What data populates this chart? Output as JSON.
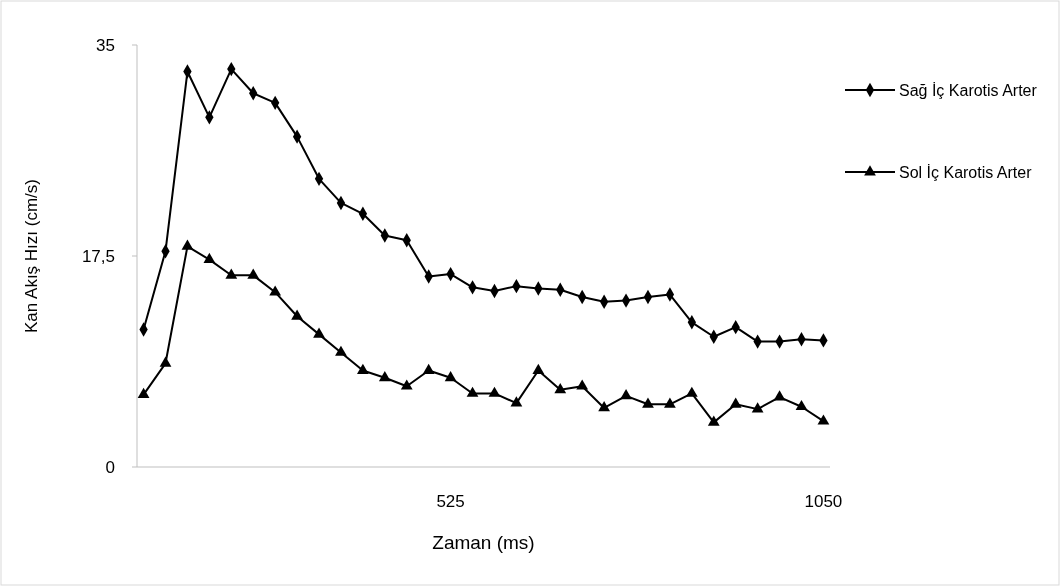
{
  "chart_data": {
    "type": "line",
    "xlabel": "Zaman (ms)",
    "ylabel": "Kan Akış Hızı (cm/s)",
    "categories": [
      null,
      null,
      null,
      null,
      null,
      null,
      null,
      null,
      null,
      null,
      null,
      null,
      null,
      null,
      "525",
      null,
      null,
      null,
      null,
      null,
      null,
      null,
      null,
      null,
      null,
      null,
      null,
      null,
      null,
      null,
      null,
      "1050"
    ],
    "series": [
      {
        "name": "Sağ İç Karotis Arter",
        "color": "#000000",
        "marker": "diamond",
        "values": [
          11.4,
          17.9,
          32.8,
          29.0,
          33.0,
          31.0,
          30.2,
          27.4,
          23.9,
          21.9,
          21.0,
          19.2,
          18.8,
          15.8,
          16.0,
          14.9,
          14.6,
          15.0,
          14.8,
          14.7,
          14.1,
          13.7,
          13.8,
          14.1,
          14.3,
          12.0,
          10.8,
          11.6,
          10.4,
          10.4,
          10.6,
          10.5
        ]
      },
      {
        "name": "Sol İç Karotis Arter",
        "color": "#000000",
        "marker": "triangle",
        "values": [
          6.0,
          8.6,
          18.3,
          17.2,
          15.9,
          15.9,
          14.5,
          12.5,
          11.0,
          9.5,
          8.0,
          7.4,
          6.7,
          8.0,
          7.4,
          6.1,
          6.1,
          5.3,
          8.0,
          6.4,
          6.7,
          4.9,
          5.9,
          5.2,
          5.2,
          6.1,
          3.7,
          5.2,
          4.8,
          5.8,
          5.0,
          3.8
        ]
      }
    ],
    "ylim": [
      0,
      35
    ],
    "yticks": [
      0,
      {
        "value": 17.5,
        "label": "17,5"
      },
      35
    ],
    "grid": false,
    "legend": "right",
    "line_style": "solid"
  }
}
